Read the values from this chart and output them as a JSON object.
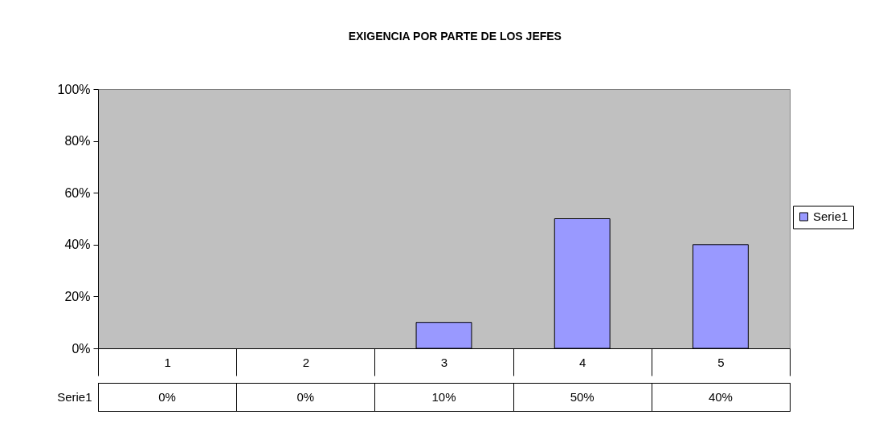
{
  "chart_data": {
    "type": "bar",
    "title": "EXIGENCIA POR PARTE DE LOS JEFES",
    "categories": [
      "1",
      "2",
      "3",
      "4",
      "5"
    ],
    "series": [
      {
        "name": "Serie1",
        "color": "#9999ff",
        "values": [
          0,
          0,
          10,
          50,
          40
        ],
        "value_labels": [
          "0%",
          "0%",
          "10%",
          "50%",
          "40%"
        ]
      }
    ],
    "ylim": [
      0,
      100
    ],
    "yticks": [
      {
        "value": 0,
        "label": "0%"
      },
      {
        "value": 20,
        "label": "20%"
      },
      {
        "value": 40,
        "label": "40%"
      },
      {
        "value": 60,
        "label": "60%"
      },
      {
        "value": 80,
        "label": "80%"
      },
      {
        "value": 100,
        "label": "100%"
      }
    ],
    "legend": "right"
  }
}
